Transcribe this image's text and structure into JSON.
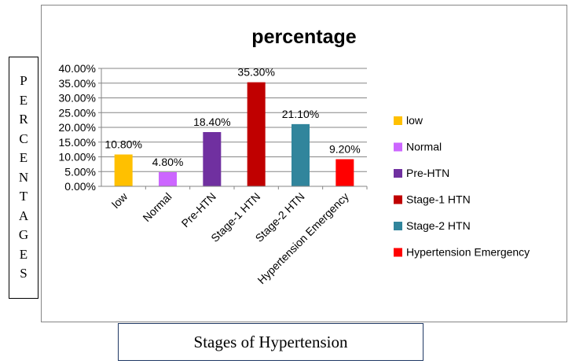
{
  "chart_data": {
    "type": "bar",
    "title": "percentage",
    "ylabel": "PERCENTAGES",
    "xlabel": "Stages of Hypertension",
    "categories": [
      "low",
      "Normal",
      "Pre-HTN",
      "Stage-1 HTN",
      "Stage-2 HTN",
      "Hypertension Emergency"
    ],
    "values": [
      10.8,
      4.8,
      18.4,
      35.3,
      21.1,
      9.2
    ],
    "data_labels": [
      "10.80%",
      "4.80%",
      "18.40%",
      "35.30%",
      "21.10%",
      "9.20%"
    ],
    "colors": [
      "#ffc000",
      "#cc66ff",
      "#7030a0",
      "#c00000",
      "#31859c",
      "#ff0000"
    ],
    "yticks": [
      "0.00%",
      "5.00%",
      "10.00%",
      "15.00%",
      "20.00%",
      "25.00%",
      "30.00%",
      "35.00%",
      "40.00%"
    ],
    "ylim": [
      0,
      40
    ],
    "grid": true,
    "legend_position": "right"
  }
}
